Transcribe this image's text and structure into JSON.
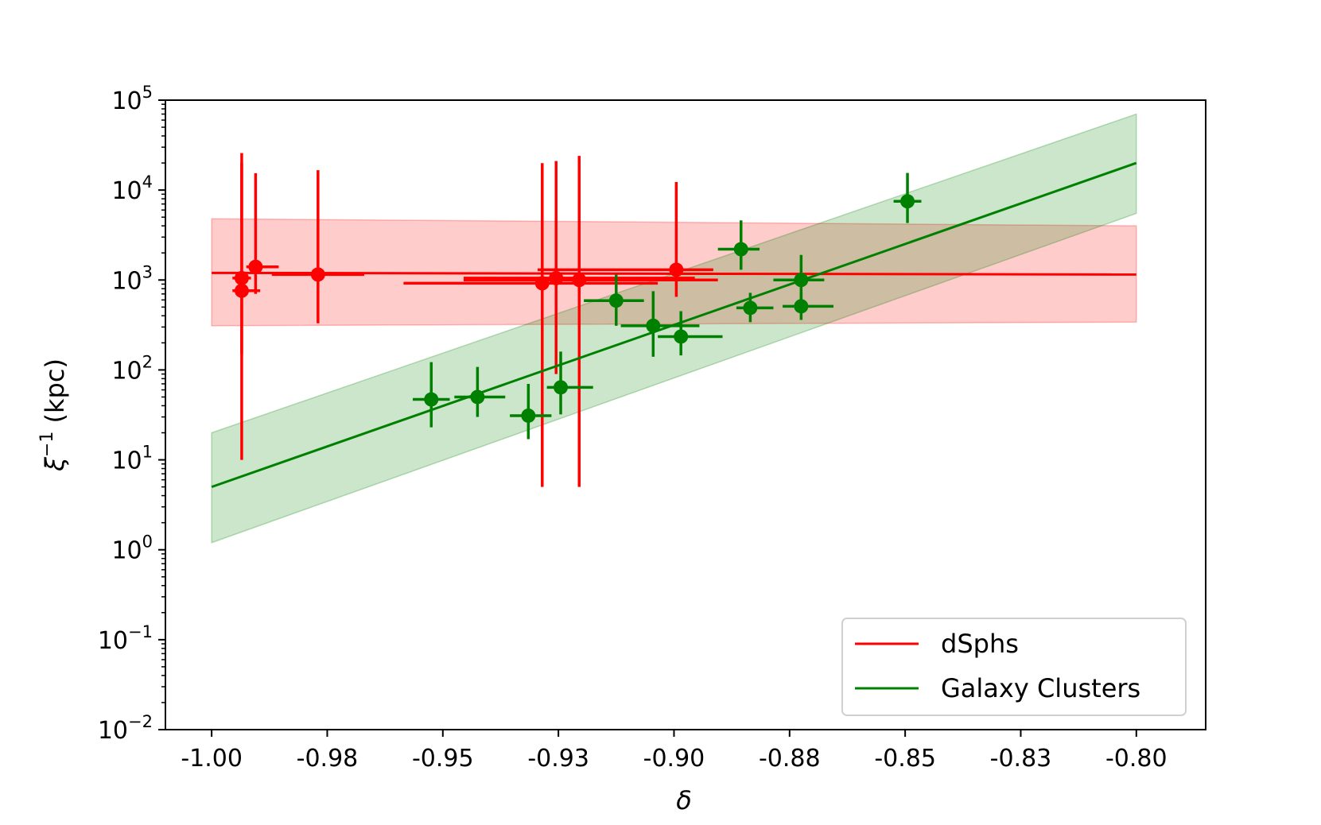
{
  "chart_data": {
    "type": "scatter",
    "title": "",
    "xlabel": "δ",
    "ylabel_main": "ξ",
    "ylabel_sup": "−1",
    "ylabel_unit": " (kpc)",
    "xlim": [
      -1.01,
      -0.785
    ],
    "ylim": [
      0.01,
      100000
    ],
    "yscale": "log",
    "grid": false,
    "legend_position": "lower-right",
    "x_ticks": [
      {
        "value": -1.0,
        "label": "-1.00"
      },
      {
        "value": -0.975,
        "label": "-0.98"
      },
      {
        "value": -0.95,
        "label": "-0.95"
      },
      {
        "value": -0.925,
        "label": "-0.93"
      },
      {
        "value": -0.9,
        "label": "-0.90"
      },
      {
        "value": -0.875,
        "label": "-0.88"
      },
      {
        "value": -0.85,
        "label": "-0.85"
      },
      {
        "value": -0.825,
        "label": "-0.83"
      },
      {
        "value": -0.8,
        "label": "-0.80"
      }
    ],
    "y_ticks": [
      {
        "value": 0.01,
        "base": "10",
        "exp": "−2"
      },
      {
        "value": 0.1,
        "base": "10",
        "exp": "−1"
      },
      {
        "value": 1,
        "base": "10",
        "exp": "0"
      },
      {
        "value": 10,
        "base": "10",
        "exp": "1"
      },
      {
        "value": 100,
        "base": "10",
        "exp": "2"
      },
      {
        "value": 1000,
        "base": "10",
        "exp": "3"
      },
      {
        "value": 10000,
        "base": "10",
        "exp": "4"
      },
      {
        "value": 100000,
        "base": "10",
        "exp": "5"
      }
    ],
    "series": [
      {
        "name": "dSphs",
        "color": "#ff0000",
        "fit_line": {
          "x": [
            -1.0,
            -0.8
          ],
          "y": [
            1200,
            1150
          ]
        },
        "band": {
          "x": [
            -1.0,
            -0.8
          ],
          "lower": [
            310,
            340
          ],
          "upper": [
            4800,
            4000
          ]
        },
        "points": [
          {
            "x": -0.9935,
            "y": 1050,
            "xerr": [
              0.002,
              0.002
            ],
            "yerr": [
              900,
              19000
            ]
          },
          {
            "x": -0.9935,
            "y": 760,
            "xerr": [
              0.002,
              0.004
            ],
            "yerr": [
              750,
              25000
            ]
          },
          {
            "x": -0.9905,
            "y": 1400,
            "xerr": [
              0.002,
              0.005
            ],
            "yerr": [
              700,
              14000
            ]
          },
          {
            "x": -0.977,
            "y": 1150,
            "xerr": [
              0.01,
              0.01
            ],
            "yerr": [
              820,
              15500
            ]
          },
          {
            "x": -0.9285,
            "y": 920,
            "xerr": [
              0.03,
              0.025
            ],
            "yerr": [
              915,
              19000
            ]
          },
          {
            "x": -0.9255,
            "y": 1050,
            "xerr": [
              0.02,
              0.03
            ],
            "yerr": [
              960,
              20000
            ]
          },
          {
            "x": -0.9205,
            "y": 1000,
            "xerr": [
              0.025,
              0.03
            ],
            "yerr": [
              995,
              23000
            ]
          },
          {
            "x": -0.8995,
            "y": 1300,
            "xerr": [
              0.03,
              0.008
            ],
            "yerr": [
              650,
              11000
            ]
          }
        ]
      },
      {
        "name": "Galaxy Clusters",
        "color": "#008000",
        "fit_line": {
          "x": [
            -1.0,
            -0.8
          ],
          "y": [
            5,
            20000
          ]
        },
        "band": {
          "x": [
            -1.0,
            -0.8
          ],
          "lower": [
            1.2,
            5500
          ],
          "upper": [
            20,
            70000
          ]
        },
        "points": [
          {
            "x": -0.9525,
            "y": 47,
            "xerr": [
              0.004,
              0.004
            ],
            "yerr": [
              24,
              75
            ]
          },
          {
            "x": -0.9425,
            "y": 50,
            "xerr": [
              0.005,
              0.006
            ],
            "yerr": [
              20,
              58
            ]
          },
          {
            "x": -0.9315,
            "y": 31,
            "xerr": [
              0.004,
              0.005
            ],
            "yerr": [
              14,
              39
            ]
          },
          {
            "x": -0.9245,
            "y": 64,
            "xerr": [
              0.003,
              0.007
            ],
            "yerr": [
              32,
              96
            ]
          },
          {
            "x": -0.9125,
            "y": 590,
            "xerr": [
              0.007,
              0.006
            ],
            "yerr": [
              280,
              610
            ]
          },
          {
            "x": -0.9045,
            "y": 310,
            "xerr": [
              0.007,
              0.01
            ],
            "yerr": [
              170,
              440
            ]
          },
          {
            "x": -0.8985,
            "y": 235,
            "xerr": [
              0.005,
              0.009
            ],
            "yerr": [
              90,
              215
            ]
          },
          {
            "x": -0.8855,
            "y": 2200,
            "xerr": [
              0.005,
              0.004
            ],
            "yerr": [
              900,
              2400
            ]
          },
          {
            "x": -0.8835,
            "y": 490,
            "xerr": [
              0.003,
              0.005
            ],
            "yerr": [
              150,
              230
            ]
          },
          {
            "x": -0.8725,
            "y": 1000,
            "xerr": [
              0.006,
              0.005
            ],
            "yerr": [
              550,
              900
            ]
          },
          {
            "x": -0.8725,
            "y": 510,
            "xerr": [
              0.004,
              0.007
            ],
            "yerr": [
              150,
              200
            ]
          },
          {
            "x": -0.8495,
            "y": 7500,
            "xerr": [
              0.003,
              0.003
            ],
            "yerr": [
              3200,
              8000
            ]
          }
        ]
      }
    ]
  }
}
